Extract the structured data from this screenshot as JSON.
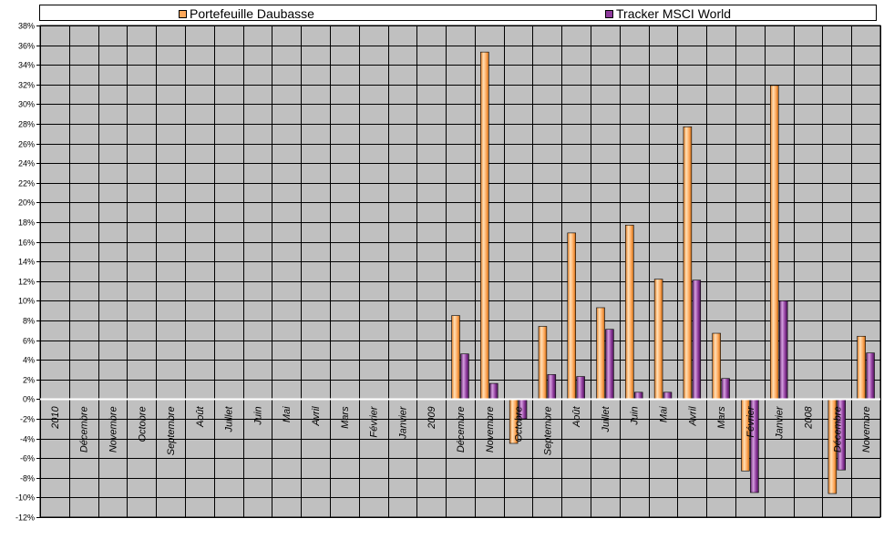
{
  "chart_data": {
    "type": "bar",
    "categories": [
      "2010",
      "Décembre",
      "Novembre",
      "Octobre",
      "Septembre",
      "Août",
      "Juillet",
      "Juin",
      "Mai",
      "Avril",
      "Mars",
      "Février",
      "Janvier",
      "2009",
      "Décembre",
      "Novembre",
      "Octobre",
      "Septembre",
      "Août",
      "Juillet",
      "Juin",
      "Mai",
      "Avril",
      "Mars",
      "Février",
      "Janvier",
      "2008",
      "Décembre",
      "Novembre"
    ],
    "series": [
      {
        "name": "Portefeuille Daubasse",
        "color": "#FFA85A",
        "values": [
          null,
          null,
          null,
          null,
          null,
          null,
          null,
          null,
          null,
          null,
          null,
          null,
          null,
          null,
          8.5,
          35.3,
          -4.5,
          7.4,
          16.9,
          9.3,
          17.7,
          12.2,
          27.7,
          6.7,
          -7.3,
          31.9,
          null,
          -9.6,
          6.4
        ]
      },
      {
        "name": "Tracker MSCI World",
        "color": "#8E3A9C",
        "values": [
          null,
          null,
          null,
          null,
          null,
          null,
          null,
          null,
          null,
          null,
          null,
          null,
          null,
          null,
          4.6,
          1.6,
          -2.0,
          2.5,
          2.3,
          7.1,
          0.7,
          0.7,
          12.1,
          2.1,
          -9.5,
          10.0,
          null,
          -7.2,
          4.7
        ]
      }
    ],
    "ylim": [
      -12,
      38
    ],
    "ytick_step": 2,
    "ytick_labels": [
      "38%",
      "36%",
      "34%",
      "32%",
      "30%",
      "28%",
      "26%",
      "24%",
      "22%",
      "20%",
      "18%",
      "16%",
      "14%",
      "12%",
      "10%",
      "8%",
      "6%",
      "4%",
      "2%",
      "0%",
      "-2%",
      "-4%",
      "-6%",
      "-8%",
      "-10%",
      "-12%"
    ],
    "grid": true,
    "legend_position": "top",
    "plot_background": "#C0C0C0"
  }
}
